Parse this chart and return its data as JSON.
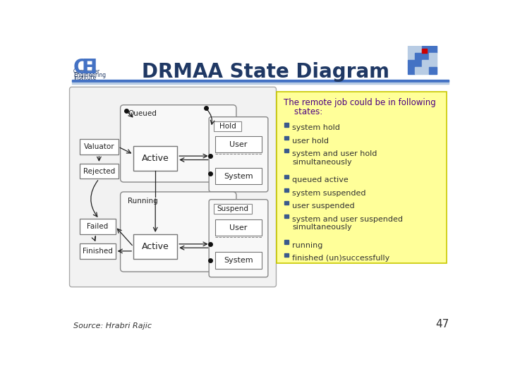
{
  "title": "DRMAA State Diagram",
  "title_color": "#1F3864",
  "bg_color": "#FFFFFF",
  "header_line_color1": "#4472C4",
  "header_line_color2": "#B8CCE4",
  "text_box_bg": "#FFFF99",
  "text_box_border": "#C8C800",
  "text_intro_line1": "The remote job could be in following",
  "text_intro_line2": "    states:",
  "bullet_color": "#3A5A8C",
  "bullets": [
    "system hold",
    "user hold",
    "system and user hold\nsimultaneously",
    "queued active",
    "system suspended",
    "user suspended",
    "system and user suspended\nsimultaneously",
    "running",
    "finished (un)successfully"
  ],
  "source_text": "Source: Hrabri Rajic",
  "page_number": "47",
  "diagram_bg": "#F5F5F5",
  "diagram_border": "#888888",
  "group_bg": "#FAFAFA",
  "group_border": "#888888",
  "hold_suspend_bg": "#F0F0F0",
  "hold_suspend_border": "#888888",
  "box_bg": "#F8F8F8",
  "box_border": "#666666",
  "arrow_color": "#222222",
  "dot_color": "#111111"
}
